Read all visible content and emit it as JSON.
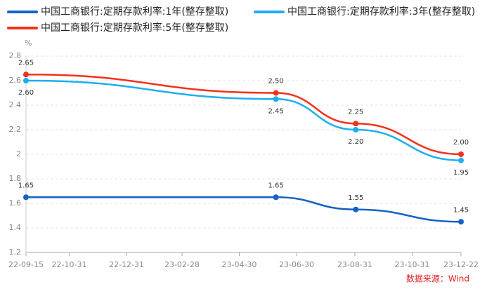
{
  "chart_data": {
    "type": "line",
    "y_unit": "%",
    "source": "数据来源：Wind",
    "x": [
      "22-09-15",
      "23-06-08",
      "23-09-01",
      "23-12-22"
    ],
    "xlim": [
      "22-09-15",
      "23-12-22"
    ],
    "xticks": [
      "22-09-15",
      "22-10-31",
      "22-12-31",
      "23-02-28",
      "23-04-30",
      "23-06-30",
      "23-08-31",
      "23-10-31",
      "23-12-22"
    ],
    "ylim": [
      1.2,
      2.8
    ],
    "yticks": [
      1.2,
      1.4,
      1.6,
      1.8,
      2,
      2.2,
      2.4,
      2.6,
      2.8
    ],
    "grid": true,
    "series": [
      {
        "name": "中国工商银行:定期存款利率:1年(整存整取)",
        "color": "#1662c4",
        "values": [
          1.65,
          1.65,
          1.55,
          1.45
        ],
        "value_labels": [
          "1.65",
          "1.65",
          "1.55",
          "1.45"
        ]
      },
      {
        "name": "中国工商银行:定期存款利率:3年(整存整取)",
        "color": "#1eaef0",
        "values": [
          2.6,
          2.45,
          2.2,
          1.95
        ],
        "value_labels": [
          "2.60",
          "2.45",
          "2.20",
          "1.95"
        ]
      },
      {
        "name": "中国工商银行:定期存款利率:5年(整存整取)",
        "color": "#f3311c",
        "values": [
          2.65,
          2.5,
          2.25,
          2.0
        ],
        "value_labels": [
          "2.65",
          "2.50",
          "2.25",
          "2.00"
        ]
      }
    ]
  }
}
